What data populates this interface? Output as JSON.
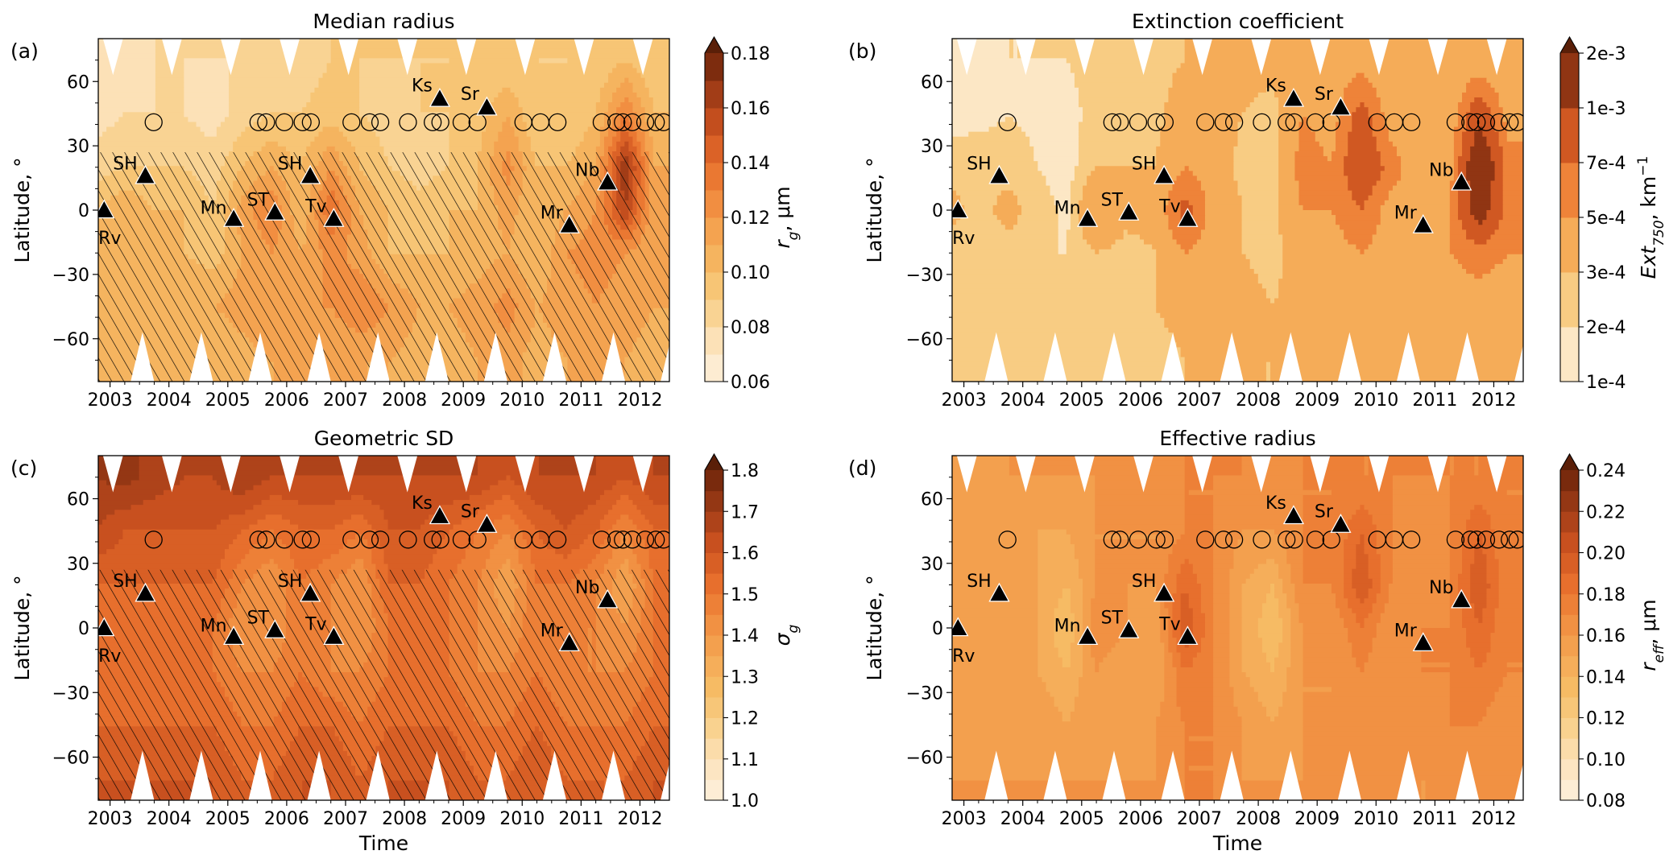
{
  "figure": {
    "xlabel": "Time",
    "ylabel": "Latitude, °"
  },
  "axes": {
    "xlim": [
      2002.8,
      2012.5
    ],
    "ylim": [
      -80,
      80
    ],
    "x_ticks": [
      2003,
      2004,
      2005,
      2006,
      2007,
      2008,
      2009,
      2010,
      2011,
      2012
    ],
    "x_tick_labels": [
      "2003",
      "2004",
      "2005",
      "2006",
      "2007",
      "2008",
      "2009",
      "2010",
      "2011",
      "2012"
    ],
    "y_ticks": [
      60,
      30,
      0,
      -30,
      -60
    ],
    "y_tick_labels": [
      "60",
      "30",
      "0",
      "−30",
      "−60"
    ]
  },
  "annotations": {
    "volcanoes": [
      {
        "name": "Rv",
        "time": 2002.9,
        "lat": 0
      },
      {
        "name": "SH",
        "time": 2003.6,
        "lat": 16
      },
      {
        "name": "Mn",
        "time": 2005.1,
        "lat": -4
      },
      {
        "name": "ST",
        "time": 2005.8,
        "lat": -1
      },
      {
        "name": "SH",
        "time": 2006.4,
        "lat": 16
      },
      {
        "name": "Tv",
        "time": 2006.8,
        "lat": -4
      },
      {
        "name": "Ks",
        "time": 2008.6,
        "lat": 52
      },
      {
        "name": "Sr",
        "time": 2009.4,
        "lat": 48
      },
      {
        "name": "Mr",
        "time": 2010.8,
        "lat": -7
      },
      {
        "name": "Nb",
        "time": 2011.45,
        "lat": 13
      }
    ],
    "circle_lat": 41,
    "circle_times": [
      2003.74,
      2005.52,
      2005.65,
      2005.96,
      2006.27,
      2006.41,
      2007.1,
      2007.41,
      2007.59,
      2008.06,
      2008.48,
      2008.61,
      2008.97,
      2009.24,
      2010.02,
      2010.31,
      2010.6,
      2011.35,
      2011.6,
      2011.71,
      2011.87,
      2012.09,
      2012.27,
      2012.4
    ]
  },
  "grid": {
    "times": [
      2002.75,
      2003.25,
      2003.75,
      2004.25,
      2004.75,
      2005.25,
      2005.75,
      2006.25,
      2006.75,
      2007.25,
      2007.75,
      2008.25,
      2008.75,
      2009.25,
      2009.75,
      2010.25,
      2010.75,
      2011.25,
      2011.75,
      2012.25
    ],
    "lats": [
      70,
      45,
      20,
      0,
      -20,
      -45,
      -70
    ]
  },
  "colors": {
    "extend_max": "#5a1f08",
    "missing": "#ffffff",
    "markers": "#000000"
  },
  "chart_data": [
    {
      "type": "heatmap",
      "panel_label": "(a)",
      "title": "Median radius",
      "colorbar": {
        "symbol": "r",
        "sub": "g",
        "unit": ", μm",
        "sup": ""
      },
      "levels": [
        0.06,
        0.07,
        0.08,
        0.09,
        0.1,
        0.11,
        0.12,
        0.13,
        0.14,
        0.15,
        0.16,
        0.17,
        0.18
      ],
      "cbar_ticks": [
        0.06,
        0.08,
        0.1,
        0.12,
        0.14,
        0.16,
        0.18
      ],
      "cbar_tick_labels": [
        "0.06",
        "0.08",
        "0.10",
        "0.12",
        "0.14",
        "0.16",
        "0.18"
      ],
      "extend": "max",
      "hatched": true,
      "xlabel": "",
      "z": [
        [
          0.08,
          0.07,
          0.08,
          0.08,
          0.08,
          0.08,
          0.08,
          0.085,
          0.09,
          0.09,
          0.09,
          0.09,
          0.09,
          0.09,
          0.09,
          0.09,
          0.09,
          0.09,
          0.1,
          0.09
        ],
        [
          0.075,
          0.08,
          0.08,
          0.08,
          0.075,
          0.085,
          0.09,
          0.09,
          0.095,
          0.09,
          0.085,
          0.09,
          0.09,
          0.095,
          0.11,
          0.09,
          0.09,
          0.1,
          0.13,
          0.1
        ],
        [
          0.085,
          0.09,
          0.09,
          0.09,
          0.085,
          0.1,
          0.11,
          0.1,
          0.12,
          0.1,
          0.09,
          0.085,
          0.09,
          0.1,
          0.125,
          0.1,
          0.1,
          0.11,
          0.17,
          0.11
        ],
        [
          0.1,
          0.11,
          0.1,
          0.1,
          0.09,
          0.115,
          0.13,
          0.1,
          0.14,
          0.11,
          0.1,
          0.095,
          0.1,
          0.1,
          0.115,
          0.1,
          0.11,
          0.12,
          0.16,
          0.11
        ],
        [
          0.1,
          0.1,
          0.1,
          0.1,
          0.095,
          0.11,
          0.12,
          0.11,
          0.125,
          0.115,
          0.1,
          0.1,
          0.1,
          0.105,
          0.11,
          0.1,
          0.12,
          0.125,
          0.12,
          0.11
        ],
        [
          0.105,
          0.105,
          0.11,
          0.11,
          0.11,
          0.115,
          0.12,
          0.12,
          0.12,
          0.13,
          0.12,
          0.11,
          0.11,
          0.115,
          0.125,
          0.11,
          0.115,
          0.12,
          0.115,
          0.11
        ],
        [
          0.1,
          0.1,
          0.105,
          0.1,
          0.1,
          0.105,
          0.11,
          0.11,
          0.11,
          0.11,
          0.11,
          0.105,
          0.105,
          0.11,
          0.115,
          0.105,
          0.11,
          0.11,
          0.11,
          0.105
        ]
      ]
    },
    {
      "type": "heatmap",
      "panel_label": "(b)",
      "title": "Extinction coefficient",
      "colorbar": {
        "symbol": "Ext",
        "sub": "750",
        "unit": ", km",
        "sup": "−1"
      },
      "levels": [
        0.0001,
        0.0002,
        0.0003,
        0.0005,
        0.0007,
        0.001,
        0.002
      ],
      "cbar_ticks": [
        0.0001,
        0.0002,
        0.0003,
        0.0005,
        0.0007,
        0.001,
        0.002
      ],
      "cbar_tick_labels": [
        "1e-4",
        "2e-4",
        "3e-4",
        "5e-4",
        "7e-4",
        "1e-3",
        "2e-3"
      ],
      "extend": "max",
      "hatched": false,
      "xlabel": "",
      "z": [
        [
          0.00015,
          0.00015,
          0.0002,
          0.0002,
          0.0002,
          0.00025,
          0.00025,
          0.00025,
          0.0003,
          0.00035,
          0.00035,
          0.00035,
          0.0004,
          0.0004,
          0.0004,
          0.0003,
          0.0003,
          0.0003,
          0.00035,
          0.0003
        ],
        [
          0.00015,
          0.00015,
          0.0002,
          0.00018,
          0.00015,
          0.00025,
          0.0003,
          0.00025,
          0.0004,
          0.00035,
          0.0003,
          0.00025,
          0.0005,
          0.0004,
          0.0008,
          0.0004,
          0.0003,
          0.00035,
          0.0009,
          0.0004
        ],
        [
          0.00025,
          0.0003,
          0.00025,
          0.0002,
          0.00015,
          0.0003,
          0.0003,
          0.0003,
          0.0005,
          0.0004,
          0.00025,
          0.0002,
          0.0006,
          0.0005,
          0.001,
          0.0006,
          0.00035,
          0.0004,
          0.0014,
          0.0006
        ],
        [
          0.00035,
          0.00025,
          0.00035,
          0.00025,
          0.00018,
          0.0005,
          0.00035,
          0.00035,
          0.0008,
          0.0004,
          0.0003,
          0.00025,
          0.0005,
          0.0005,
          0.0007,
          0.0004,
          0.0005,
          0.0005,
          0.0012,
          0.0006
        ],
        [
          0.00025,
          0.0002,
          0.00025,
          0.0002,
          0.0002,
          0.0003,
          0.00025,
          0.0003,
          0.0005,
          0.0004,
          0.0003,
          0.00025,
          0.0004,
          0.0004,
          0.0005,
          0.0004,
          0.0004,
          0.0005,
          0.0006,
          0.0005
        ],
        [
          0.00025,
          0.0002,
          0.0002,
          0.00025,
          0.0002,
          0.0003,
          0.00025,
          0.0003,
          0.00035,
          0.0004,
          0.00035,
          0.0003,
          0.00035,
          0.00035,
          0.0004,
          0.00035,
          0.00035,
          0.00035,
          0.0004,
          0.00035
        ],
        [
          0.0002,
          0.0002,
          0.00025,
          0.0002,
          0.0002,
          0.00025,
          0.00025,
          0.00025,
          0.0003,
          0.00035,
          0.0003,
          0.0003,
          0.0003,
          0.0003,
          0.00035,
          0.0003,
          0.0003,
          0.0003,
          0.00035,
          0.0003
        ]
      ]
    },
    {
      "type": "heatmap",
      "panel_label": "(c)",
      "title": "Geometric SD",
      "colorbar": {
        "symbol": "σ",
        "sub": "g",
        "unit": "",
        "sup": ""
      },
      "levels": [
        1.0,
        1.05,
        1.1,
        1.15,
        1.2,
        1.25,
        1.3,
        1.35,
        1.4,
        1.45,
        1.5,
        1.55,
        1.6,
        1.65,
        1.7,
        1.75,
        1.8
      ],
      "cbar_ticks": [
        1.0,
        1.1,
        1.2,
        1.3,
        1.4,
        1.5,
        1.6,
        1.7,
        1.8
      ],
      "cbar_tick_labels": [
        "1.0",
        "1.1",
        "1.2",
        "1.3",
        "1.4",
        "1.5",
        "1.6",
        "1.7",
        "1.8"
      ],
      "extend": "max",
      "hatched": true,
      "xlabel": "Time",
      "z": [
        [
          1.7,
          1.72,
          1.68,
          1.65,
          1.65,
          1.7,
          1.65,
          1.65,
          1.65,
          1.65,
          1.65,
          1.65,
          1.65,
          1.65,
          1.6,
          1.65,
          1.65,
          1.65,
          1.6,
          1.65
        ],
        [
          1.65,
          1.6,
          1.6,
          1.6,
          1.6,
          1.55,
          1.5,
          1.55,
          1.55,
          1.5,
          1.6,
          1.6,
          1.55,
          1.5,
          1.45,
          1.55,
          1.6,
          1.55,
          1.45,
          1.55
        ],
        [
          1.55,
          1.55,
          1.55,
          1.55,
          1.55,
          1.45,
          1.4,
          1.5,
          1.45,
          1.4,
          1.55,
          1.55,
          1.5,
          1.45,
          1.35,
          1.5,
          1.5,
          1.45,
          1.35,
          1.5
        ],
        [
          1.5,
          1.5,
          1.5,
          1.5,
          1.5,
          1.4,
          1.4,
          1.5,
          1.45,
          1.4,
          1.5,
          1.5,
          1.5,
          1.45,
          1.4,
          1.5,
          1.45,
          1.45,
          1.4,
          1.5
        ],
        [
          1.5,
          1.5,
          1.5,
          1.5,
          1.5,
          1.45,
          1.45,
          1.5,
          1.45,
          1.45,
          1.5,
          1.5,
          1.5,
          1.45,
          1.45,
          1.5,
          1.45,
          1.45,
          1.45,
          1.5
        ],
        [
          1.55,
          1.55,
          1.55,
          1.55,
          1.55,
          1.5,
          1.5,
          1.55,
          1.55,
          1.5,
          1.55,
          1.55,
          1.55,
          1.5,
          1.5,
          1.55,
          1.5,
          1.5,
          1.5,
          1.55
        ],
        [
          1.6,
          1.6,
          1.6,
          1.6,
          1.6,
          1.55,
          1.55,
          1.6,
          1.6,
          1.55,
          1.6,
          1.6,
          1.6,
          1.55,
          1.55,
          1.6,
          1.55,
          1.55,
          1.55,
          1.6
        ]
      ]
    },
    {
      "type": "heatmap",
      "panel_label": "(d)",
      "title": "Effective radius",
      "colorbar": {
        "symbol": "r",
        "sub": "eff",
        "unit": ", μm",
        "sup": ""
      },
      "levels": [
        0.08,
        0.09,
        0.1,
        0.11,
        0.12,
        0.13,
        0.14,
        0.15,
        0.16,
        0.17,
        0.18,
        0.19,
        0.2,
        0.21,
        0.22,
        0.23,
        0.24
      ],
      "cbar_ticks": [
        0.08,
        0.1,
        0.12,
        0.14,
        0.16,
        0.18,
        0.2,
        0.22,
        0.24
      ],
      "cbar_tick_labels": [
        "0.08",
        "0.10",
        "0.12",
        "0.14",
        "0.16",
        "0.18",
        "0.20",
        "0.22",
        "0.24"
      ],
      "extend": "max",
      "hatched": false,
      "xlabel": "Time",
      "z": [
        [
          0.16,
          0.15,
          0.16,
          0.16,
          0.16,
          0.16,
          0.16,
          0.16,
          0.17,
          0.17,
          0.17,
          0.16,
          0.17,
          0.17,
          0.17,
          0.17,
          0.17,
          0.17,
          0.17,
          0.17
        ],
        [
          0.15,
          0.15,
          0.16,
          0.15,
          0.15,
          0.16,
          0.16,
          0.16,
          0.17,
          0.17,
          0.16,
          0.16,
          0.17,
          0.17,
          0.19,
          0.17,
          0.16,
          0.17,
          0.19,
          0.17
        ],
        [
          0.15,
          0.16,
          0.15,
          0.15,
          0.14,
          0.16,
          0.16,
          0.16,
          0.19,
          0.17,
          0.15,
          0.14,
          0.17,
          0.17,
          0.2,
          0.17,
          0.16,
          0.17,
          0.2,
          0.17
        ],
        [
          0.16,
          0.16,
          0.15,
          0.15,
          0.13,
          0.17,
          0.16,
          0.15,
          0.2,
          0.17,
          0.15,
          0.13,
          0.16,
          0.16,
          0.18,
          0.16,
          0.17,
          0.17,
          0.19,
          0.17
        ],
        [
          0.15,
          0.15,
          0.15,
          0.15,
          0.14,
          0.16,
          0.15,
          0.15,
          0.18,
          0.17,
          0.15,
          0.14,
          0.16,
          0.16,
          0.17,
          0.16,
          0.17,
          0.17,
          0.18,
          0.17
        ],
        [
          0.16,
          0.15,
          0.15,
          0.16,
          0.15,
          0.16,
          0.15,
          0.16,
          0.17,
          0.17,
          0.16,
          0.15,
          0.16,
          0.16,
          0.17,
          0.16,
          0.16,
          0.17,
          0.17,
          0.16
        ],
        [
          0.16,
          0.16,
          0.16,
          0.16,
          0.16,
          0.16,
          0.16,
          0.16,
          0.17,
          0.17,
          0.16,
          0.16,
          0.16,
          0.16,
          0.17,
          0.16,
          0.16,
          0.16,
          0.17,
          0.16
        ]
      ]
    }
  ]
}
